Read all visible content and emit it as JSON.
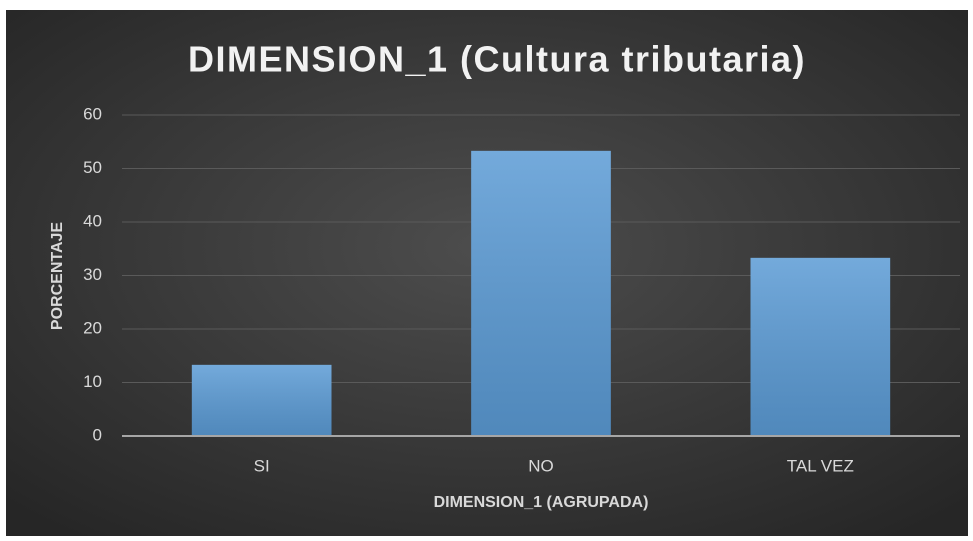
{
  "chart_data": {
    "type": "bar",
    "title": "DIMENSION_1 (Cultura tributaria)",
    "x_label": "DIMENSION_1 (AGRUPADA)",
    "y_label": "PORCENTAJE",
    "categories": [
      "SI",
      "NO",
      "TAL VEZ"
    ],
    "values": [
      13.3,
      53.3,
      33.3
    ],
    "color": "#5b9bd5",
    "ylim": [
      0,
      60
    ],
    "yticks": [
      0,
      10,
      20,
      30,
      40,
      50,
      60
    ],
    "grid": true
  }
}
